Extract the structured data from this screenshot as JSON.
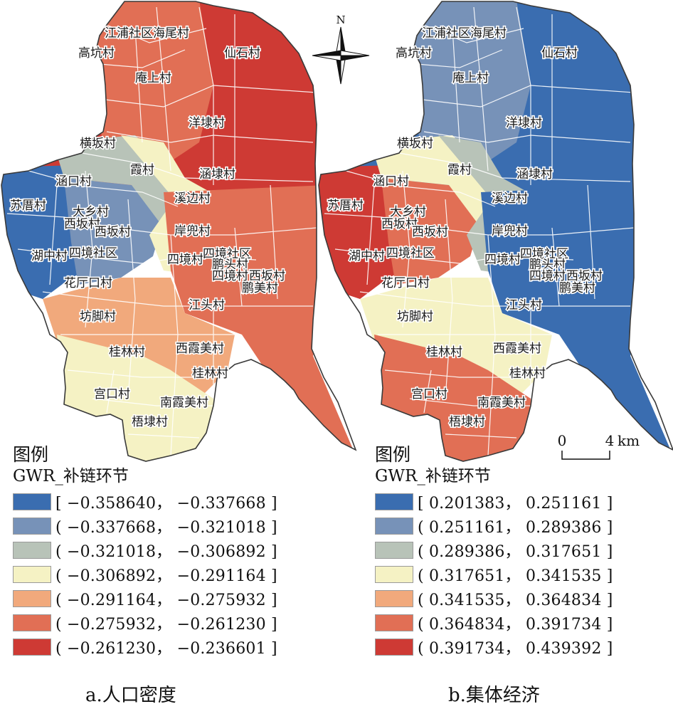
{
  "colors": [
    "#3a6db0",
    "#7792b8",
    "#b8c3b8",
    "#f5f2c4",
    "#f1a97c",
    "#e16f55",
    "#ce3a34"
  ],
  "north_arrow": {
    "label": "N"
  },
  "scale_bar": {
    "zero": "0",
    "end": "4",
    "unit": "km"
  },
  "panel_a": {
    "caption": "a.人口密度",
    "legend_title": "图例",
    "legend_subtitle": "GWR_补链环节",
    "legend": [
      {
        "range": "[ −0.358640， −0.337668 ]",
        "color": "#3a6db0"
      },
      {
        "range": "( −0.337668， −0.321018 ]",
        "color": "#7792b8"
      },
      {
        "range": "( −0.321018， −0.306892 ]",
        "color": "#b8c3b8"
      },
      {
        "range": "( −0.306892， −0.291164 ]",
        "color": "#f5f2c4"
      },
      {
        "range": "( −0.291164， −0.275932 ]",
        "color": "#f1a97c"
      },
      {
        "range": "( −0.275932， −0.261230 ]",
        "color": "#e16f55"
      },
      {
        "range": "( −0.261230， −0.236601 ]",
        "color": "#ce3a34"
      }
    ]
  },
  "panel_b": {
    "caption": "b.集体经济",
    "legend_title": "图例",
    "legend_subtitle": "GWR_补链环节",
    "legend": [
      {
        "range": "[ 0.201383， 0.251161 ]",
        "color": "#3a6db0"
      },
      {
        "range": "( 0.251161， 0.289386 ]",
        "color": "#7792b8"
      },
      {
        "range": "( 0.289386， 0.317651 ]",
        "color": "#b8c3b8"
      },
      {
        "range": "( 0.317651， 0.341535 ]",
        "color": "#f5f2c4"
      },
      {
        "range": "( 0.341535， 0.364834 ]",
        "color": "#f1a97c"
      },
      {
        "range": "( 0.364834， 0.391734 ]",
        "color": "#e16f55"
      },
      {
        "range": "( 0.391734， 0.439392 ]",
        "color": "#ce3a34"
      }
    ]
  },
  "villages": [
    {
      "name": "江浦社区"
    },
    {
      "name": "海尾村"
    },
    {
      "name": "高坑村"
    },
    {
      "name": "仙石村"
    },
    {
      "name": "庵上村"
    },
    {
      "name": "洋埭村"
    },
    {
      "name": "横坂村"
    },
    {
      "name": "霞村"
    },
    {
      "name": "涵口村"
    },
    {
      "name": "涵埭村"
    },
    {
      "name": "溪边村"
    },
    {
      "name": "苏厝村"
    },
    {
      "name": "大乡村"
    },
    {
      "name": "西坂村"
    },
    {
      "name": "西坂村"
    },
    {
      "name": "岸兜村"
    },
    {
      "name": "湖中村"
    },
    {
      "name": "四境社区"
    },
    {
      "name": "四境村"
    },
    {
      "name": "四境社区"
    },
    {
      "name": "鹏头村"
    },
    {
      "name": "四境村"
    },
    {
      "name": "西坂村"
    },
    {
      "name": "鹏美村"
    },
    {
      "name": "花厅口村"
    },
    {
      "name": "江头村"
    },
    {
      "name": "坊脚村"
    },
    {
      "name": "桂林村"
    },
    {
      "name": "西霞美村"
    },
    {
      "name": "桂林村"
    },
    {
      "name": "宫口村"
    },
    {
      "name": "南霞美村"
    },
    {
      "name": "梧埭村"
    }
  ],
  "region_values": {
    "panel_a": [
      {
        "region": "north",
        "class": 6
      },
      {
        "region": "northwest",
        "class": 5
      },
      {
        "region": "west",
        "class": 0
      },
      {
        "region": "central_west",
        "class": 1
      },
      {
        "region": "central",
        "class": 2
      },
      {
        "region": "middle_band",
        "class": 3
      },
      {
        "region": "east",
        "class": 5
      },
      {
        "region": "south",
        "class": 4
      },
      {
        "region": "southwest",
        "class": 3
      }
    ],
    "panel_b": [
      {
        "region": "north",
        "class": 0
      },
      {
        "region": "northwest",
        "class": 1
      },
      {
        "region": "west",
        "class": 6
      },
      {
        "region": "central_west",
        "class": 5
      },
      {
        "region": "central",
        "class": 3
      },
      {
        "region": "middle_band",
        "class": 2
      },
      {
        "region": "east",
        "class": 0
      },
      {
        "region": "south",
        "class": 3
      },
      {
        "region": "southwest",
        "class": 5
      }
    ]
  }
}
